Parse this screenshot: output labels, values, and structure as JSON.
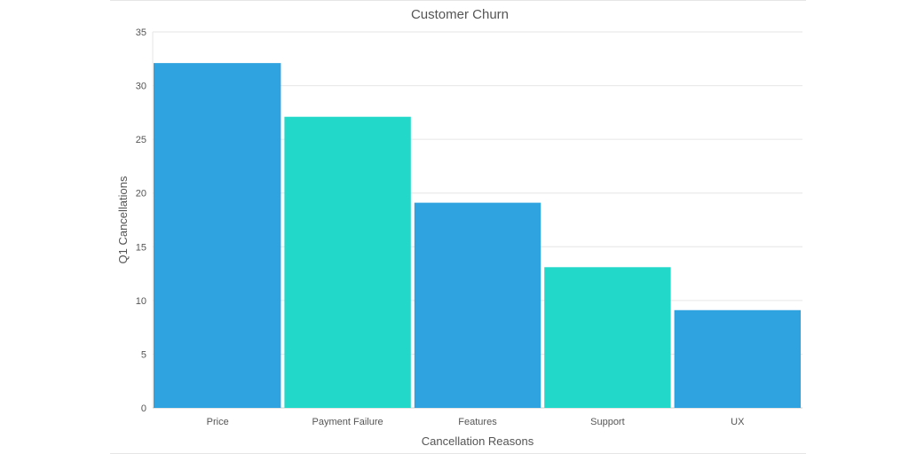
{
  "chart_data": {
    "type": "bar",
    "title": "Customer Churn",
    "xlabel": "Cancellation Reasons",
    "ylabel": "Q1 Cancellations",
    "categories": [
      "Price",
      "Payment Failure",
      "Features",
      "Support",
      "UX"
    ],
    "values": [
      32.1,
      27.1,
      19.1,
      13.1,
      9.1
    ],
    "bar_colors": [
      "#2ea3e0",
      "#22d9c9",
      "#2ea3e0",
      "#22d9c9",
      "#2ea3e0"
    ],
    "ylim": [
      0,
      35
    ],
    "yticks": [
      0,
      5,
      10,
      15,
      20,
      25,
      30,
      35
    ],
    "grid": true,
    "legend": "none"
  }
}
